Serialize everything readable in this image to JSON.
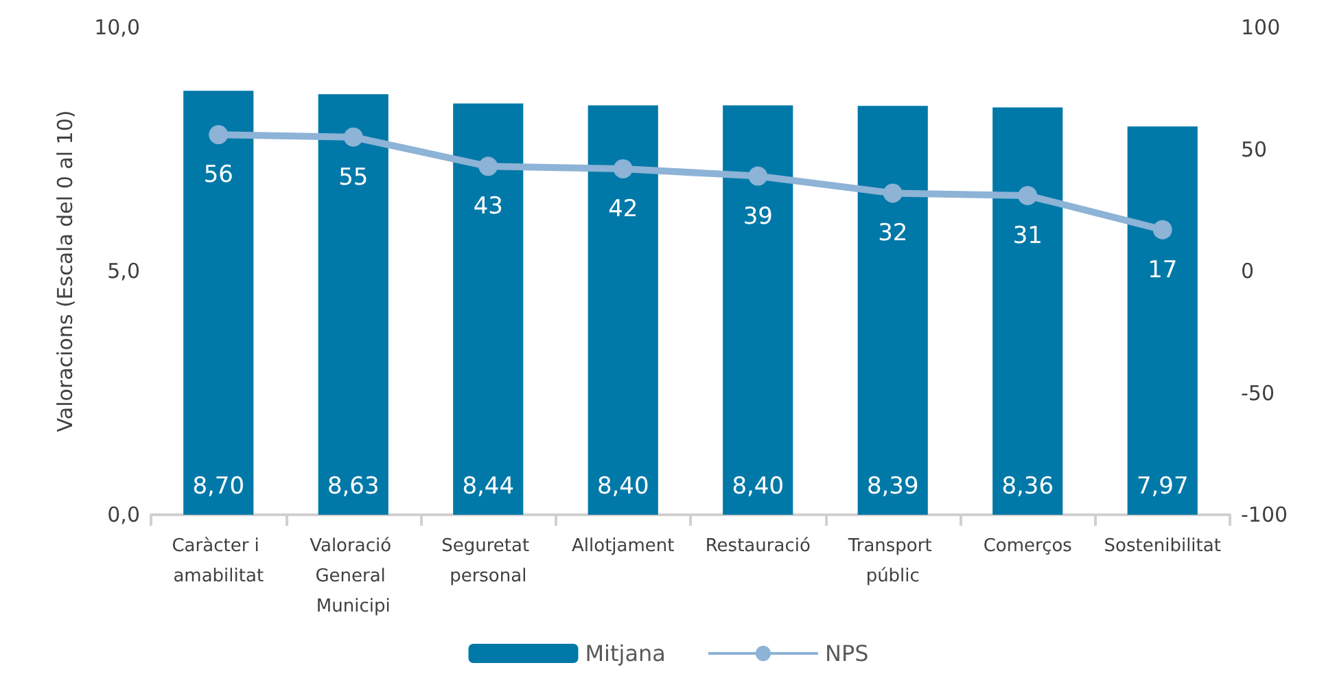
{
  "chart_data": {
    "type": "bar",
    "ylabel": "Valoracions (Escala del 0 al 10)",
    "categories": [
      "Caràcter i amabilitat",
      "Valoració General Municipi",
      "Seguretat personal",
      "Allotjament",
      "Restauració",
      "Transport públic",
      "Comerços",
      "Sostenibilitat"
    ],
    "series": [
      {
        "name": "Mitjana",
        "color": "#0079a8",
        "values": [
          8.7,
          8.63,
          8.44,
          8.4,
          8.4,
          8.39,
          8.36,
          7.97
        ],
        "value_labels": [
          "8,70",
          "8,63",
          "8,44",
          "8,40",
          "8,40",
          "8,39",
          "8,36",
          "7,97"
        ]
      },
      {
        "name": "NPS",
        "type": "line",
        "axis": "y2",
        "color": "#8db3d6",
        "marker": "circle",
        "values": [
          56,
          55,
          43,
          42,
          39,
          32,
          31,
          17
        ],
        "value_labels": [
          "56",
          "55",
          "43",
          "42",
          "39",
          "32",
          "31",
          "17"
        ]
      }
    ],
    "ylim": [
      0,
      10
    ],
    "yticks": [
      {
        "value": 0,
        "label": "0,0"
      },
      {
        "value": 5,
        "label": "5,0"
      },
      {
        "value": 10,
        "label": "10,0"
      }
    ],
    "y2lim": [
      -100,
      100
    ],
    "y2ticks": [
      -100,
      -50,
      0,
      50,
      100
    ],
    "grid": false,
    "legend": "bottom"
  }
}
